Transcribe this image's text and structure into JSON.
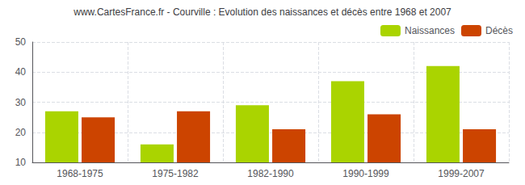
{
  "chart_data": {
    "type": "bar",
    "title": "www.CartesFrance.fr - Courville : Evolution des naissances et décès entre 1968 et 2007",
    "categories": [
      "1968-1975",
      "1975-1982",
      "1982-1990",
      "1990-1999",
      "1999-2007"
    ],
    "series": [
      {
        "name": "Naissances",
        "color": "#aad400",
        "values": [
          27,
          16,
          29,
          37,
          42
        ]
      },
      {
        "name": "Décès",
        "color": "#cc4400",
        "values": [
          25,
          27,
          21,
          26,
          21
        ]
      }
    ],
    "ylim": [
      10,
      50
    ],
    "yticks": [
      10,
      20,
      30,
      40,
      50
    ],
    "grid": true,
    "legend": "upper right"
  }
}
